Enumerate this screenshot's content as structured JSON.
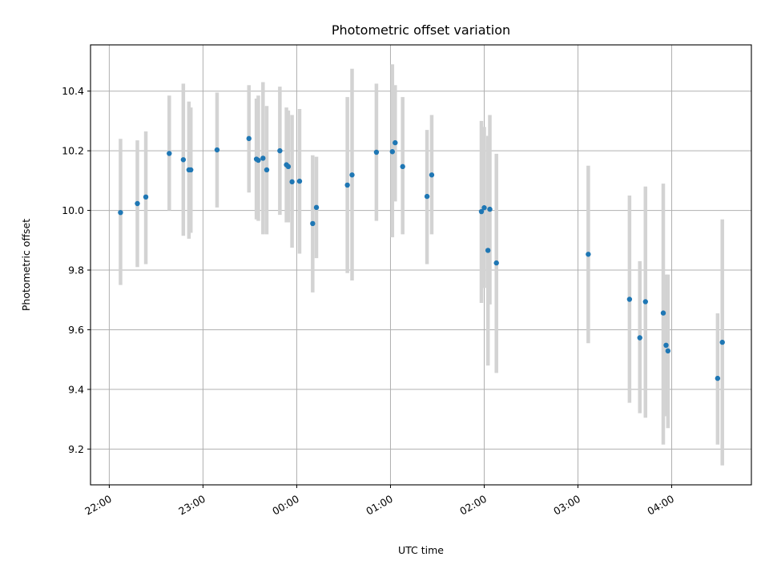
{
  "chart_data": {
    "type": "scatter",
    "title": "Photometric offset variation",
    "xlabel": "UTC time",
    "ylabel": "Photometric offset",
    "x_unit": "UTC time (decimal hours relative to 00:00)",
    "xlim": [
      -2.2,
      4.85
    ],
    "ylim": [
      9.08,
      10.555
    ],
    "x_ticks": [
      {
        "value": -2,
        "label": "22:00"
      },
      {
        "value": -1,
        "label": "23:00"
      },
      {
        "value": 0,
        "label": "00:00"
      },
      {
        "value": 1,
        "label": "01:00"
      },
      {
        "value": 2,
        "label": "02:00"
      },
      {
        "value": 3,
        "label": "03:00"
      },
      {
        "value": 4,
        "label": "04:00"
      }
    ],
    "y_ticks": [
      {
        "value": 9.2,
        "label": "9.2"
      },
      {
        "value": 9.4,
        "label": "9.4"
      },
      {
        "value": 9.6,
        "label": "9.6"
      },
      {
        "value": 9.8,
        "label": "9.8"
      },
      {
        "value": 10.0,
        "label": "10.0"
      },
      {
        "value": 10.2,
        "label": "10.2"
      },
      {
        "value": 10.4,
        "label": "10.4"
      }
    ],
    "grid": true,
    "legend": "none",
    "colors": {
      "point": "#1f77b4",
      "error_bar": "#d3d3d3"
    },
    "points": [
      {
        "x": -1.88,
        "y": 9.993,
        "lo": 9.75,
        "hi": 10.24
      },
      {
        "x": -1.7,
        "y": 10.023,
        "lo": 9.81,
        "hi": 10.235
      },
      {
        "x": -1.61,
        "y": 10.045,
        "lo": 9.82,
        "hi": 10.265
      },
      {
        "x": -1.36,
        "y": 10.191,
        "lo": 10.0,
        "hi": 10.385
      },
      {
        "x": -1.21,
        "y": 10.17,
        "lo": 9.915,
        "hi": 10.425
      },
      {
        "x": -1.15,
        "y": 10.136,
        "lo": 9.905,
        "hi": 10.365
      },
      {
        "x": -1.13,
        "y": 10.136,
        "lo": 9.925,
        "hi": 10.345
      },
      {
        "x": -0.85,
        "y": 10.203,
        "lo": 10.01,
        "hi": 10.395
      },
      {
        "x": -0.51,
        "y": 10.241,
        "lo": 10.06,
        "hi": 10.42
      },
      {
        "x": -0.43,
        "y": 10.172,
        "lo": 9.97,
        "hi": 10.375
      },
      {
        "x": -0.41,
        "y": 10.168,
        "lo": 9.965,
        "hi": 10.385
      },
      {
        "x": -0.36,
        "y": 10.175,
        "lo": 9.92,
        "hi": 10.43
      },
      {
        "x": -0.32,
        "y": 10.136,
        "lo": 9.92,
        "hi": 10.35
      },
      {
        "x": -0.18,
        "y": 10.2,
        "lo": 9.985,
        "hi": 10.415
      },
      {
        "x": -0.11,
        "y": 10.153,
        "lo": 9.96,
        "hi": 10.345
      },
      {
        "x": -0.09,
        "y": 10.147,
        "lo": 9.96,
        "hi": 10.335
      },
      {
        "x": -0.05,
        "y": 10.096,
        "lo": 9.875,
        "hi": 10.32
      },
      {
        "x": 0.03,
        "y": 10.098,
        "lo": 9.855,
        "hi": 10.34
      },
      {
        "x": 0.17,
        "y": 9.956,
        "lo": 9.725,
        "hi": 10.185
      },
      {
        "x": 0.21,
        "y": 10.01,
        "lo": 9.84,
        "hi": 10.18
      },
      {
        "x": 0.54,
        "y": 10.085,
        "lo": 9.79,
        "hi": 10.38
      },
      {
        "x": 0.59,
        "y": 10.119,
        "lo": 9.765,
        "hi": 10.475
      },
      {
        "x": 0.85,
        "y": 10.195,
        "lo": 9.965,
        "hi": 10.425
      },
      {
        "x": 1.02,
        "y": 10.197,
        "lo": 9.91,
        "hi": 10.49
      },
      {
        "x": 1.05,
        "y": 10.227,
        "lo": 10.03,
        "hi": 10.42
      },
      {
        "x": 1.13,
        "y": 10.147,
        "lo": 9.92,
        "hi": 10.38
      },
      {
        "x": 1.39,
        "y": 10.047,
        "lo": 9.82,
        "hi": 10.27
      },
      {
        "x": 1.44,
        "y": 10.119,
        "lo": 9.92,
        "hi": 10.32
      },
      {
        "x": 1.97,
        "y": 9.996,
        "lo": 9.69,
        "hi": 10.3
      },
      {
        "x": 2.0,
        "y": 10.009,
        "lo": 9.74,
        "hi": 10.28
      },
      {
        "x": 2.04,
        "y": 9.866,
        "lo": 9.48,
        "hi": 10.25
      },
      {
        "x": 2.06,
        "y": 10.004,
        "lo": 9.685,
        "hi": 10.32
      },
      {
        "x": 2.13,
        "y": 9.824,
        "lo": 9.455,
        "hi": 10.19
      },
      {
        "x": 3.11,
        "y": 9.853,
        "lo": 9.555,
        "hi": 10.15
      },
      {
        "x": 3.55,
        "y": 9.702,
        "lo": 9.355,
        "hi": 10.05
      },
      {
        "x": 3.66,
        "y": 9.573,
        "lo": 9.32,
        "hi": 9.83
      },
      {
        "x": 3.72,
        "y": 9.694,
        "lo": 9.305,
        "hi": 10.08
      },
      {
        "x": 3.91,
        "y": 9.656,
        "lo": 9.215,
        "hi": 10.09
      },
      {
        "x": 3.94,
        "y": 9.548,
        "lo": 9.31,
        "hi": 9.785
      },
      {
        "x": 3.96,
        "y": 9.529,
        "lo": 9.27,
        "hi": 9.785
      },
      {
        "x": 4.49,
        "y": 9.437,
        "lo": 9.215,
        "hi": 9.655
      },
      {
        "x": 4.54,
        "y": 9.558,
        "lo": 9.145,
        "hi": 9.97
      }
    ]
  }
}
